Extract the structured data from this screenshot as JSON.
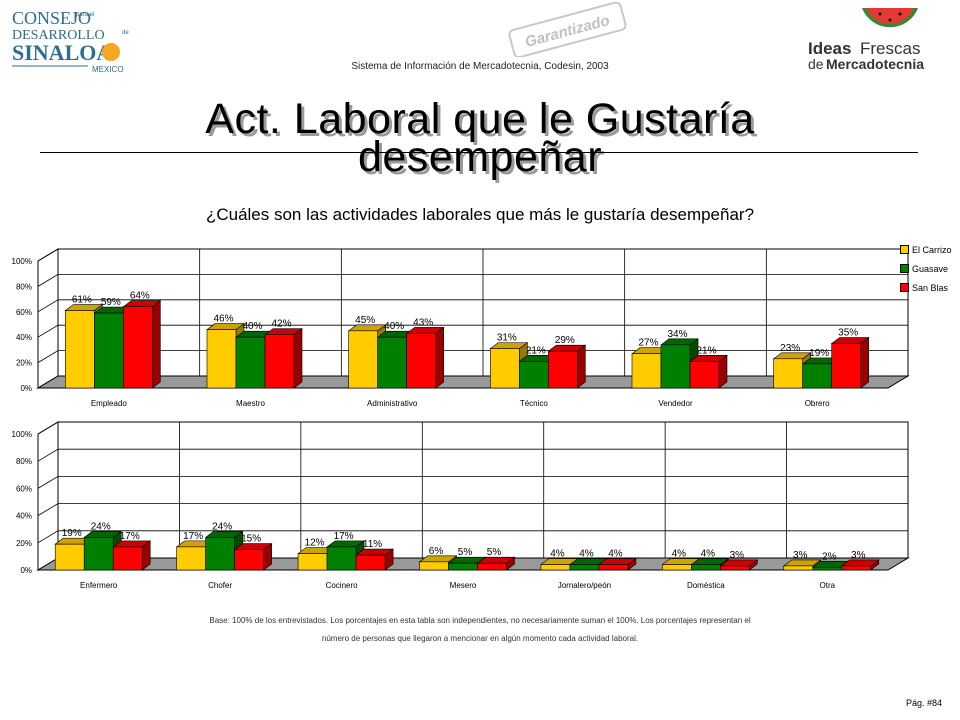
{
  "header": {
    "system_line": "Sistema de Información de Mercadotecnia, Codesin, 2003",
    "logo_left": {
      "l1": "CONSEJO",
      "l2": "DESARROLLO",
      "l3": "SINALOA",
      "l4": "MEXICO",
      "small1": "para el",
      "small2": "de"
    },
    "logo_right": {
      "w1": "Ideas",
      "w2": "Frescas",
      "w3": "de",
      "w4": "Mercadotecnia"
    },
    "stamp": {
      "text": "Garantizado"
    }
  },
  "title_line1": "Act. Laboral que le Gustaría",
  "title_line2": "desempeñar",
  "question": "¿Cuáles son las actividades laborales que más le gustaría desempeñar?",
  "legend": [
    "El Carrizo",
    "Guasave",
    "San Blas"
  ],
  "colors": {
    "el_carrizo": "#FFCC00",
    "guasave": "#008000",
    "san_blas": "#FF0000"
  },
  "chart_data": [
    {
      "type": "bar",
      "categories": [
        "Empleado",
        "Maestro",
        "Administrativo",
        "Técnico",
        "Vendedor",
        "Obrero"
      ],
      "series": [
        {
          "name": "El Carrizo",
          "values": [
            61,
            46,
            45,
            31,
            27,
            23
          ],
          "labels": [
            "61%",
            "46%",
            "45%",
            "31%",
            "27%",
            "23%"
          ]
        },
        {
          "name": "Guasave",
          "values": [
            59,
            40,
            40,
            21,
            34,
            19
          ],
          "labels": [
            "59%",
            "40%",
            "40%",
            "21%",
            "34%",
            "19%"
          ]
        },
        {
          "name": "San Blas",
          "values": [
            64,
            42,
            43,
            29,
            21,
            35
          ],
          "labels": [
            "64%",
            "42%",
            "43%",
            "29%",
            "21%",
            "35%"
          ]
        }
      ],
      "ylim": [
        0,
        100
      ],
      "yticks": [
        "0%",
        "20%",
        "40%",
        "60%",
        "80%",
        "100%"
      ],
      "grid": true,
      "legend": "right"
    },
    {
      "type": "bar",
      "categories": [
        "Enfermero",
        "Chofer",
        "Cocinero",
        "Mesero",
        "Jornalero/peón",
        "Doméstica",
        "Otra"
      ],
      "series": [
        {
          "name": "El Carrizo",
          "values": [
            19,
            17,
            12,
            6,
            4,
            4,
            3
          ],
          "labels": [
            "19%",
            "17%",
            "12%",
            "6%",
            "4%",
            "4%",
            "3%"
          ]
        },
        {
          "name": "Guasave",
          "values": [
            24,
            24,
            17,
            5,
            4,
            4,
            2
          ],
          "labels": [
            "24%",
            "24%",
            "17%",
            "5%",
            "4%",
            "4%",
            "2%"
          ]
        },
        {
          "name": "San Blas",
          "values": [
            17,
            15,
            11,
            5,
            4,
            3,
            3
          ],
          "labels": [
            "17%",
            "15%",
            "11%",
            "5%",
            "4%",
            "3%",
            "3%"
          ]
        }
      ],
      "ylim": [
        0,
        100
      ],
      "yticks": [
        "0%",
        "20%",
        "40%",
        "60%",
        "80%",
        "100%"
      ],
      "grid": true
    }
  ],
  "footnote_line1": "Base: 100% de los entrevistados. Los porcentajes en esta tabla son independientes, no necesariamente suman el 100%. Los porcentajes representan el",
  "footnote_line2": "número de personas que llegaron a mencionar en algún momento cada actividad laboral.",
  "page_number": "Pág. #84"
}
